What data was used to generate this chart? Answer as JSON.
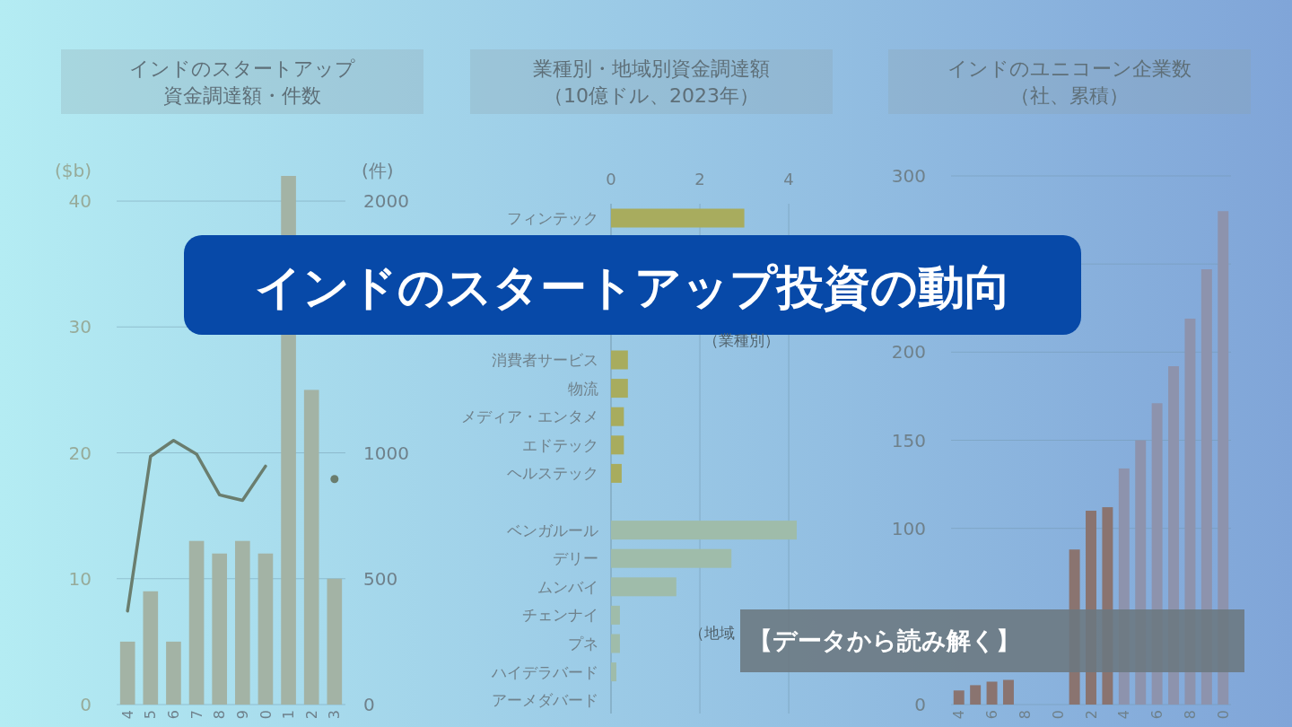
{
  "chart_data": [
    {
      "type": "bar",
      "title": "インドのスタートアップ",
      "subtitle": "資金調達額・件数",
      "ylabel": "($b)",
      "y2label": "(件)",
      "categories": [
        "4",
        "5",
        "6",
        "7",
        "8",
        "9",
        "0",
        "1",
        "2",
        "3"
      ],
      "series": [
        {
          "type": "bar",
          "color": "#a3b3a5",
          "values": [
            5,
            9,
            5,
            13,
            12,
            13,
            12,
            42,
            25,
            10
          ]
        },
        {
          "type": "line",
          "axis": "y2",
          "color": "#6a7d6e",
          "values": [
            372,
            986,
            1049,
            995,
            833,
            811,
            947,
            null,
            null,
            896
          ]
        }
      ],
      "ylim": [
        0,
        42
      ],
      "yticks": [
        0,
        10,
        20,
        30,
        40
      ],
      "y2lim": [
        0,
        2100
      ],
      "y2ticks": [
        0,
        500,
        1000,
        2000
      ],
      "grid": "y",
      "marker": "none",
      "annotations": [
        "インドのスタートアップ投資の動向"
      ]
    },
    {
      "type": "bar",
      "orientation": "horizontal",
      "title": "業種別・地域別資金調達額",
      "subtitle": "（10億ドル、2023年）",
      "categories": [
        "フィンテック",
        null,
        null,
        null,
        null,
        "消費者サービス",
        "物流",
        "メディア・エンタメ",
        "エドテック",
        "ヘルステック",
        null,
        "ベンガルール",
        "デリー",
        "ムンバイ",
        "チェンナイ",
        "プネ",
        "ハイデラバード",
        "アーメダバード"
      ],
      "series": [
        {
          "color": "#a8ac5e",
          "values": [
            3.0,
            null,
            null,
            null,
            null,
            0.38,
            0.38,
            0.29,
            0.29,
            0.24,
            null,
            null,
            null,
            null,
            null,
            null,
            null,
            null
          ]
        },
        {
          "color": "#9fbcaa",
          "values": [
            null,
            null,
            null,
            null,
            null,
            null,
            null,
            null,
            null,
            null,
            null,
            4.18,
            2.71,
            1.47,
            0.2,
            0.2,
            0.12,
            0
          ]
        }
      ],
      "xlim": [
        0,
        4.2
      ],
      "xticks": [
        0,
        2,
        4
      ],
      "grid": "x",
      "annotations": [
        "（業種別）",
        "（地域",
        "【データから読み解く】"
      ]
    },
    {
      "type": "bar",
      "title": "インドのユニコーン企業数",
      "subtitle": "（社、累積）",
      "categories": [
        "4",
        null,
        "6",
        null,
        "8",
        null,
        "0",
        null,
        "2",
        null,
        "4",
        null,
        "6",
        null,
        "8",
        null,
        "0"
      ],
      "series": [
        {
          "color": "#8a7470",
          "values": [
            8,
            11,
            13,
            14,
            null,
            null,
            null,
            88,
            110,
            112,
            null,
            null,
            null,
            null,
            null,
            null,
            null
          ]
        },
        {
          "color": "#8d93ad",
          "values": [
            null,
            null,
            null,
            null,
            null,
            null,
            null,
            null,
            null,
            null,
            134,
            150,
            171,
            192,
            219,
            247,
            280
          ]
        }
      ],
      "ylim": [
        0,
        300
      ],
      "yticks": [
        0,
        100,
        150,
        200,
        {
          "value": 250,
          "label": null
        },
        300
      ],
      "grid": "y"
    }
  ]
}
